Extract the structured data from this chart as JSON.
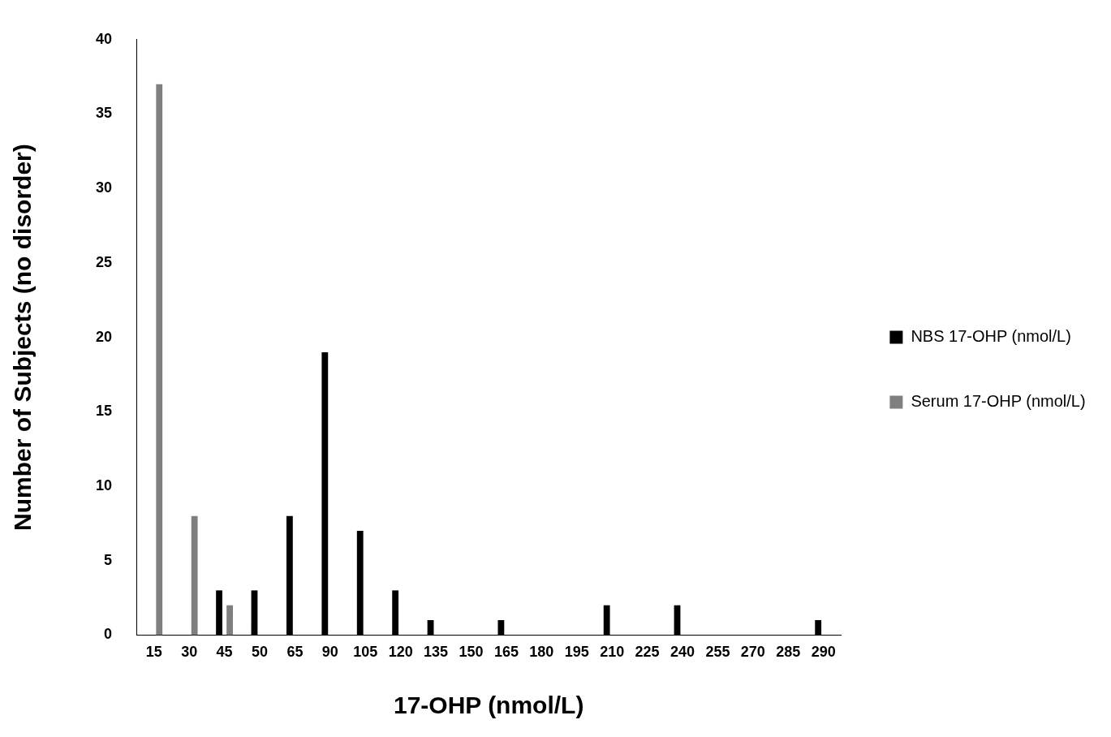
{
  "chart_data": {
    "type": "bar",
    "xlabel": "17-OHP (nmol/L)",
    "ylabel": "Number of Subjects (no disorder)",
    "categories": [
      "15",
      "30",
      "45",
      "50",
      "65",
      "90",
      "105",
      "120",
      "135",
      "150",
      "165",
      "180",
      "195",
      "210",
      "225",
      "240",
      "255",
      "270",
      "285",
      "290"
    ],
    "series": [
      {
        "name": "NBS 17-OHP (nmol/L)",
        "color": "#000000",
        "values": [
          0,
          0,
          3,
          3,
          8,
          19,
          7,
          3,
          1,
          0,
          1,
          0,
          0,
          2,
          0,
          2,
          0,
          0,
          0,
          1
        ]
      },
      {
        "name": "Serum 17-OHP (nmol/L)",
        "color": "#7f7f7f",
        "values": [
          37,
          8,
          2,
          0,
          0,
          0,
          0,
          0,
          0,
          0,
          0,
          0,
          0,
          0,
          0,
          0,
          0,
          0,
          0,
          0
        ]
      }
    ],
    "ylim": [
      0,
      40
    ],
    "yticks": [
      0,
      5,
      10,
      15,
      20,
      25,
      30,
      35,
      40
    ],
    "grid": false,
    "legend": "right"
  }
}
